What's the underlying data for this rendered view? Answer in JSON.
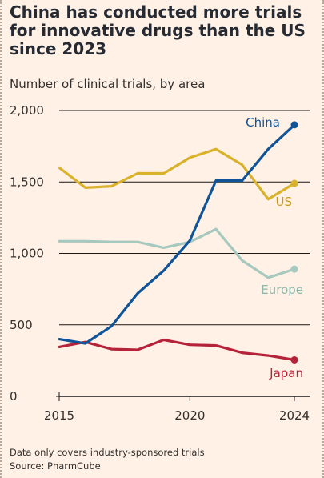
{
  "title": "China has conducted more trials for innovative drugs than the US since 2023",
  "subtitle": "Number of clinical trials, by area",
  "footnote": "Data only covers industry-sponsored trials",
  "source": "Source: PharmCube",
  "chart_data": {
    "type": "line",
    "x": [
      2015,
      2016,
      2017,
      2018,
      2019,
      2020,
      2021,
      2022,
      2023,
      2024
    ],
    "xticks": [
      2015,
      2020,
      2024
    ],
    "xtick_labels": [
      "2015",
      "2020",
      "2024"
    ],
    "xlim": [
      2015,
      2024
    ],
    "ylim": [
      0,
      2000
    ],
    "yticks": [
      0,
      500,
      1000,
      1500,
      2000
    ],
    "ytick_labels": [
      "0",
      "500",
      "1,000",
      "1,500",
      "2,000"
    ],
    "grid": true,
    "legend": "direct labels",
    "series": [
      {
        "name": "China",
        "color": "#0f5499",
        "values": [
          400,
          370,
          490,
          720,
          880,
          1090,
          1510,
          1510,
          1730,
          1900
        ],
        "end_marker": true
      },
      {
        "name": "US",
        "color": "#d9b12a",
        "values": [
          1600,
          1460,
          1470,
          1560,
          1560,
          1670,
          1730,
          1620,
          1380,
          1490
        ],
        "end_marker": true
      },
      {
        "name": "Europe",
        "color": "#a6c8bf",
        "values": [
          1085,
          1085,
          1080,
          1080,
          1040,
          1080,
          1170,
          950,
          830,
          890
        ],
        "end_marker": true
      },
      {
        "name": "Japan",
        "color": "#b5233a",
        "values": [
          345,
          380,
          330,
          325,
          395,
          360,
          355,
          305,
          285,
          255
        ],
        "end_marker": true
      }
    ]
  }
}
